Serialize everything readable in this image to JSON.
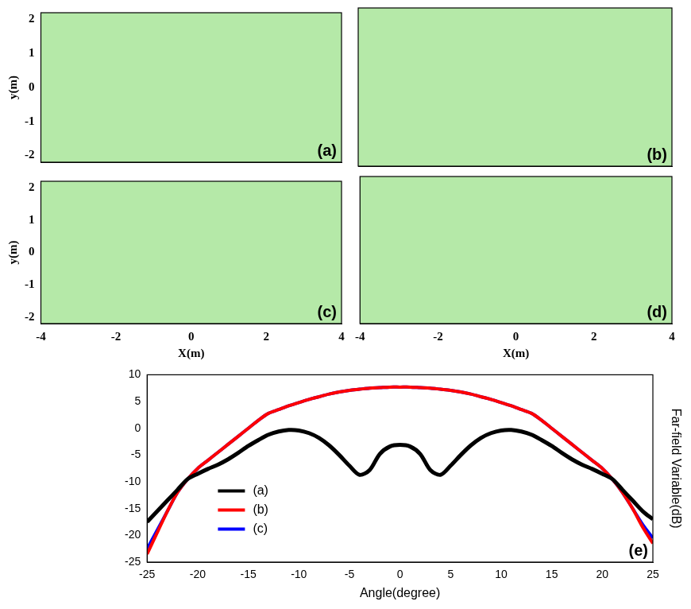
{
  "chart_data": [
    {
      "type": "field_map",
      "panel_label": "(a)",
      "ylabel": "y(m)",
      "xlim": [
        -4,
        4
      ],
      "ylim": [
        -2.2,
        2.2
      ],
      "xticks": [
        -4,
        -2,
        0,
        2,
        4
      ],
      "yticks": [
        -2,
        -1,
        0,
        1,
        2
      ],
      "tick_labels": "y"
    },
    {
      "type": "field_map",
      "panel_label": "(b)",
      "xlim": [
        -4,
        4
      ],
      "ylim": [
        -2.2,
        2.2
      ],
      "xticks": [
        -4,
        -2,
        0,
        2,
        4
      ],
      "yticks": [
        -2,
        -1,
        0,
        1,
        2
      ],
      "tick_labels": false
    },
    {
      "type": "field_map",
      "panel_label": "(c)",
      "xlabel": "X(m)",
      "ylabel": "y(m)",
      "xlim": [
        -4,
        4
      ],
      "ylim": [
        -2.2,
        2.2
      ],
      "xticks": [
        -4,
        -2,
        0,
        2,
        4
      ],
      "yticks": [
        -2,
        -1,
        0,
        1,
        2
      ]
    },
    {
      "type": "field_map",
      "panel_label": "(d)",
      "xlabel": "X(m)",
      "xlim": [
        -4,
        4
      ],
      "ylim": [
        -2.2,
        2.2
      ],
      "xticks": [
        -4,
        -2,
        0,
        2,
        4
      ],
      "yticks": [
        -2,
        -1,
        0,
        1,
        2
      ],
      "tick_labels": "x"
    },
    {
      "type": "line",
      "panel_label": "(e)",
      "xlabel": "Angle(degree)",
      "ylabel": "Far-field Variable(dB)",
      "x": [
        -25,
        -24,
        -23,
        -22,
        -21,
        -20,
        -19,
        -18,
        -17,
        -16,
        -15,
        -14,
        -13,
        -12,
        -11,
        -10,
        -9,
        -8,
        -7,
        -6,
        -5,
        -4,
        -3,
        -2,
        -1,
        0,
        1,
        2,
        3,
        4,
        5,
        6,
        7,
        8,
        9,
        10,
        11,
        12,
        13,
        14,
        15,
        16,
        17,
        18,
        19,
        20,
        21,
        22,
        23,
        24,
        25
      ],
      "xlim": [
        -25,
        25
      ],
      "ylim": [
        -25,
        10
      ],
      "xticks": [
        -25,
        -20,
        -15,
        -10,
        -5,
        0,
        5,
        10,
        15,
        20,
        25
      ],
      "yticks": [
        -25,
        -20,
        -15,
        -10,
        -5,
        0,
        5,
        10
      ],
      "legend": "lower left",
      "series": [
        {
          "name": "(a)",
          "color": "#000000",
          "values": [
            -17.5,
            -15.5,
            -13.5,
            -11.5,
            -9.5,
            -8.5,
            -7.6,
            -6.8,
            -5.8,
            -4.6,
            -3.3,
            -2.2,
            -1.2,
            -0.6,
            -0.3,
            -0.4,
            -0.9,
            -1.8,
            -3.2,
            -5.0,
            -7.0,
            -8.7,
            -7.8,
            -4.8,
            -3.4,
            -3.1,
            -3.4,
            -4.8,
            -7.8,
            -8.7,
            -7.0,
            -5.0,
            -3.2,
            -1.8,
            -0.9,
            -0.4,
            -0.3,
            -0.6,
            -1.2,
            -2.2,
            -3.3,
            -4.6,
            -5.8,
            -6.8,
            -7.6,
            -8.5,
            -9.5,
            -11.5,
            -13.5,
            -15.5,
            -17.0
          ]
        },
        {
          "name": "(b)",
          "color": "#ff0000",
          "values": [
            -23.5,
            -19.5,
            -15.5,
            -12,
            -9.5,
            -7.5,
            -6,
            -4.5,
            -3,
            -1.5,
            0,
            1.5,
            2.8,
            3.5,
            4.2,
            4.8,
            5.4,
            5.9,
            6.4,
            6.8,
            7.1,
            7.3,
            7.5,
            7.6,
            7.7,
            7.7,
            7.7,
            7.6,
            7.5,
            7.3,
            7.1,
            6.8,
            6.4,
            5.9,
            5.4,
            4.8,
            4.2,
            3.5,
            2.8,
            1.5,
            0,
            -1.5,
            -3,
            -4.5,
            -6,
            -7.5,
            -9.5,
            -12,
            -15,
            -18.5,
            -21.5
          ]
        },
        {
          "name": "(c)",
          "color": "#0000ff",
          "values": [
            -22.5,
            -19,
            -15.5,
            -12,
            -9.5,
            -7.5,
            -6,
            -4.5,
            -3,
            -1.5,
            0,
            1.5,
            2.8,
            3.5,
            4.2,
            4.8,
            5.4,
            5.9,
            6.4,
            6.8,
            7.1,
            7.3,
            7.5,
            7.6,
            7.7,
            7.7,
            7.7,
            7.6,
            7.5,
            7.3,
            7.1,
            6.8,
            6.4,
            5.9,
            5.4,
            4.8,
            4.2,
            3.5,
            2.8,
            1.5,
            0,
            -1.5,
            -3,
            -4.5,
            -6,
            -7.5,
            -9.5,
            -12,
            -15,
            -18,
            -20.5
          ]
        }
      ]
    }
  ]
}
